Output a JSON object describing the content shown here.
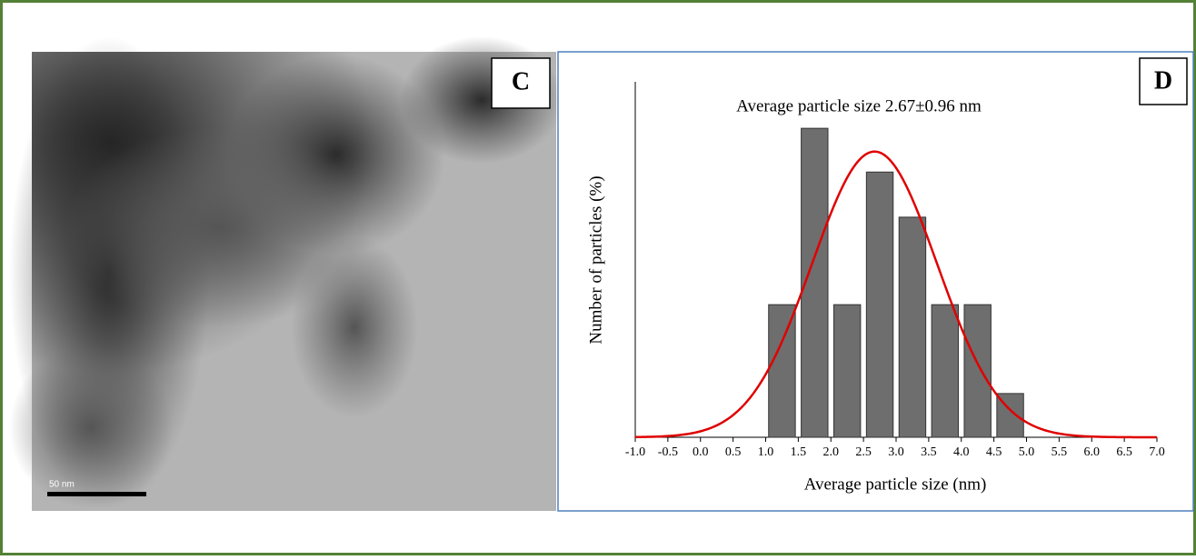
{
  "panels": {
    "left_label": "C",
    "scale_label": "50 nm"
  },
  "chart_data": {
    "type": "histogram",
    "panel_label": "D",
    "annotation": "Average particle size 2.67±0.96 nm",
    "x_label": "Average particle size (nm)",
    "y_label": "Number of particles (%)",
    "bins": [
      1.0,
      1.5,
      2.0,
      2.5,
      3.0,
      3.5,
      4.0,
      4.5,
      5.0
    ],
    "values": [
      9.7,
      22.6,
      9.7,
      19.4,
      16.1,
      9.7,
      9.7,
      3.2
    ],
    "color": "#6e6e6e",
    "fit": {
      "mean": 2.67,
      "sd": 0.96,
      "peak": 20.9,
      "color": "#e00000"
    },
    "xlim": [
      -1.0,
      7.0
    ],
    "ylim": [
      0,
      26
    ],
    "xticks": [
      {
        "value": -1,
        "label": "-1.0"
      },
      {
        "value": -0.5,
        "label": "-0.5"
      },
      {
        "value": 0,
        "label": "0.0"
      },
      {
        "value": 0.5,
        "label": "0.5"
      },
      {
        "value": 1,
        "label": "1.0"
      },
      {
        "value": 1.5,
        "label": "1.5"
      },
      {
        "value": 2,
        "label": "2.0"
      },
      {
        "value": 2.5,
        "label": "2.5"
      },
      {
        "value": 3,
        "label": "3.0"
      },
      {
        "value": 3.5,
        "label": "3.5"
      },
      {
        "value": 4,
        "label": "4.0"
      },
      {
        "value": 4.5,
        "label": "4.5"
      },
      {
        "value": 5,
        "label": "5.0"
      },
      {
        "value": 5.5,
        "label": "5.5"
      },
      {
        "value": 6,
        "label": "6.0"
      },
      {
        "value": 6.5,
        "label": "6.5"
      },
      {
        "value": 7,
        "label": "7.0"
      }
    ]
  }
}
